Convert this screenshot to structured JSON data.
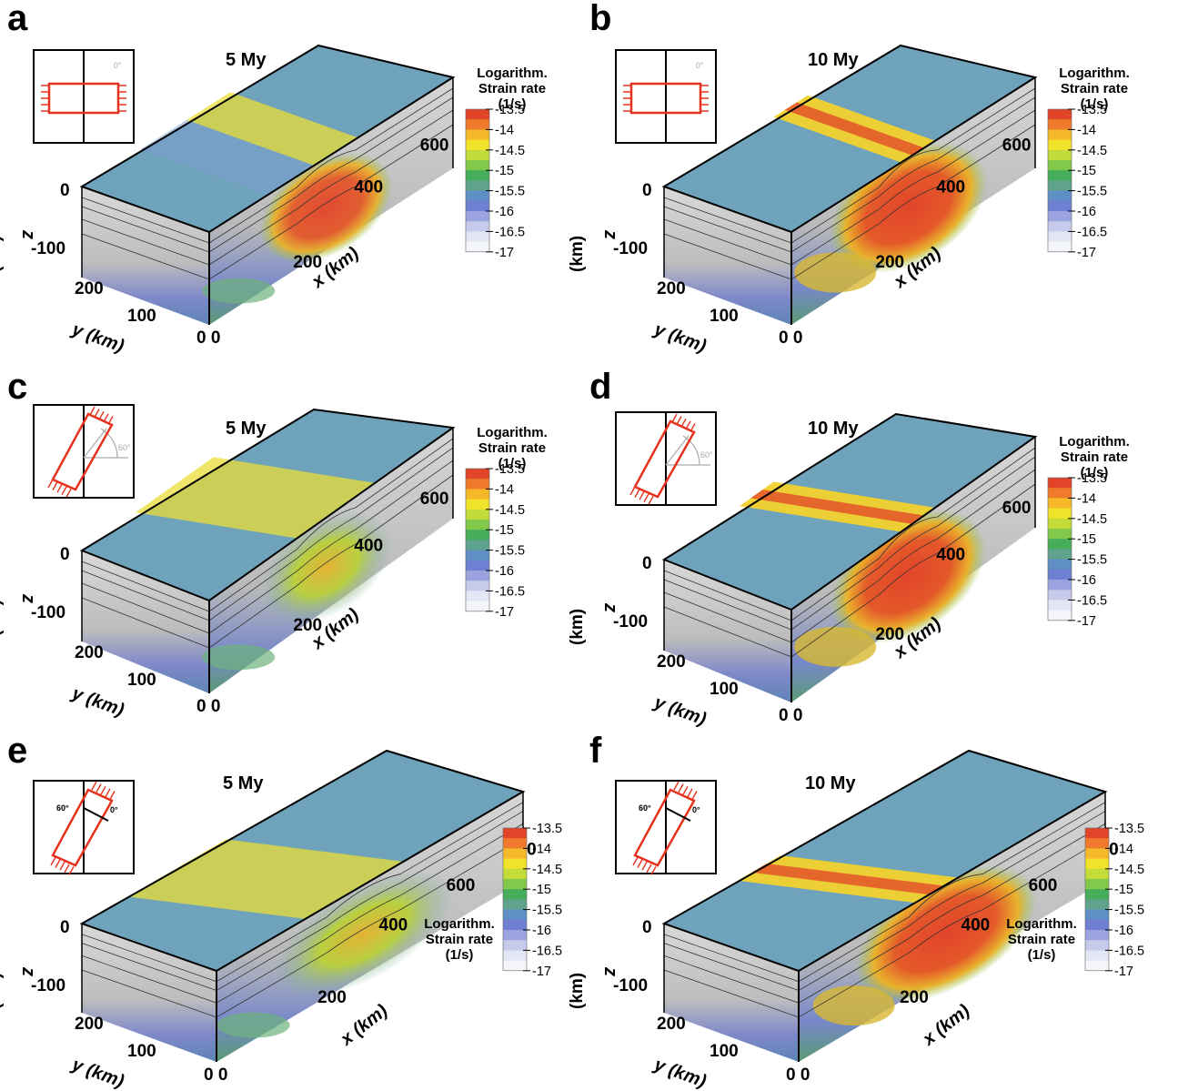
{
  "panels": [
    {
      "id": "a",
      "letter": "a",
      "time": "5 My",
      "inset": "0",
      "inset_angle": "0°",
      "pattern": "early-straight",
      "x_ticks": [
        "600",
        "400",
        "200"
      ],
      "z_ticks": [
        "0",
        "-100"
      ],
      "y_ticks": [
        "200",
        "100"
      ],
      "origin": "0 0",
      "colorbar_pos": "right"
    },
    {
      "id": "b",
      "letter": "b",
      "time": "10 My",
      "inset": "0",
      "inset_angle": "0°",
      "pattern": "late-straight",
      "x_ticks": [
        "600",
        "400",
        "200"
      ],
      "z_ticks": [
        "0",
        "-100"
      ],
      "y_ticks": [
        "200",
        "100"
      ],
      "origin": "0 0",
      "colorbar_pos": "right"
    },
    {
      "id": "c",
      "letter": "c",
      "time": "5 My",
      "inset": "60",
      "inset_angle": "60°",
      "pattern": "early-oblique",
      "x_ticks": [
        "600",
        "400",
        "200"
      ],
      "z_ticks": [
        "0",
        "-100"
      ],
      "y_ticks": [
        "200",
        "100"
      ],
      "origin": "0 0",
      "colorbar_pos": "right"
    },
    {
      "id": "d",
      "letter": "d",
      "time": "10 My",
      "inset": "60",
      "inset_angle": "60°",
      "pattern": "late-oblique",
      "x_ticks": [
        "600",
        "400",
        "200"
      ],
      "z_ticks": [
        "0",
        "-100"
      ],
      "y_ticks": [
        "200",
        "100"
      ],
      "origin": "0 0",
      "colorbar_pos": "right"
    },
    {
      "id": "e",
      "letter": "e",
      "time": "5 My",
      "inset": "60-0",
      "inset_angle": "60°",
      "inset_angle2": "0°",
      "pattern": "early-oblique",
      "x_ticks": [
        "800",
        "600",
        "400",
        "200"
      ],
      "z_ticks": [
        "0",
        "-100"
      ],
      "y_ticks": [
        "200",
        "100"
      ],
      "origin": "0 0",
      "colorbar_pos": "bottom"
    },
    {
      "id": "f",
      "letter": "f",
      "time": "10 My",
      "inset": "60-0",
      "inset_angle": "60°",
      "inset_angle2": "0°",
      "pattern": "late-oblique",
      "x_ticks": [
        "800",
        "600",
        "400",
        "200"
      ],
      "z_ticks": [
        "0",
        "-100"
      ],
      "y_ticks": [
        "200",
        "100"
      ],
      "origin": "0 0",
      "colorbar_pos": "bottom"
    }
  ],
  "axes": {
    "x": "x (km)",
    "y": "y (km)",
    "z": "z",
    "z_unit": "(km)"
  },
  "colorbar": {
    "title_line1": "Logarithm.",
    "title_line2": "Strain rate",
    "title_line3": "(1/s)",
    "ticks": [
      "-13.5",
      "-14",
      "-14.5",
      "-15",
      "-15.5",
      "-16",
      "-16.5",
      "-17"
    ],
    "colors": [
      "#e2442a",
      "#ef7a2b",
      "#f5b829",
      "#f1e22a",
      "#c3dc3a",
      "#82c84a",
      "#46ad5a",
      "#5fa38e",
      "#5f8fc4",
      "#6f7fd2",
      "#9aa2df",
      "#c6cbec",
      "#e3e6f4",
      "#f4f5fa"
    ]
  },
  "colors": {
    "top_surface": "#6fa3bb",
    "front_face": "#c4c4c4",
    "side_face": "#bdbdbd",
    "background_blue": "#7f8fd0",
    "hot": "#e2462b",
    "yellow": "#f0dc2c",
    "green": "#5bb35a",
    "inset_frame": "#e8321e"
  }
}
